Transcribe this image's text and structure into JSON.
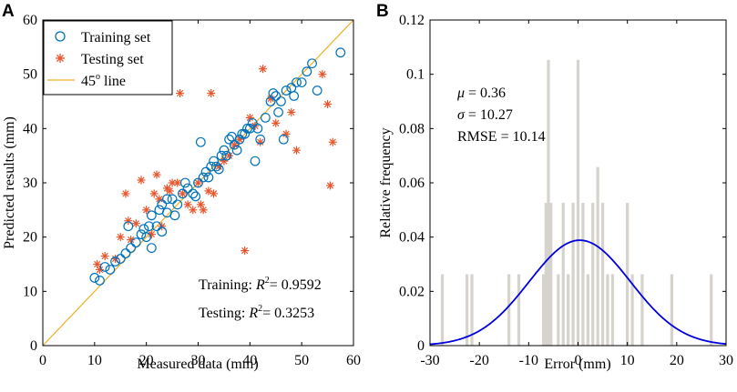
{
  "colors": {
    "train": "#0072BD",
    "test": "#E8552C",
    "line45": "#EDB120",
    "hist": "#D6D2CC",
    "normal": "#0000DD"
  },
  "chart_data": [
    {
      "panel": "A",
      "type": "scatter",
      "xlabel": "Measured data (mm)",
      "ylabel": "Predicted results (mm)",
      "xlim": [
        0,
        60
      ],
      "ylim": [
        0,
        60
      ],
      "xticks": [
        0,
        10,
        20,
        30,
        40,
        50,
        60
      ],
      "yticks": [
        0,
        10,
        20,
        30,
        40,
        50,
        60
      ],
      "xtick_labels": [
        "0",
        "10",
        "20",
        "30",
        "40",
        "50",
        "60"
      ],
      "ytick_labels": [
        "0",
        "10",
        "20",
        "30",
        "40",
        "50",
        "60"
      ],
      "legend": {
        "location": "top-left",
        "entries": [
          "Training set",
          "Testing set",
          "45"
        ],
        "line_suffix": " line",
        "sup": "o"
      },
      "annotations": {
        "training_label": "Training:",
        "training_r2": "= 0.9592",
        "testing_label": "Testing:",
        "testing_r2": "= 0.3253",
        "r": "R",
        "sq": "2"
      },
      "series": [
        {
          "name": "Training set",
          "marker": "circle",
          "points": [
            [
              10,
              12.5
            ],
            [
              11,
              12
            ],
            [
              12,
              14.5
            ],
            [
              13,
              14
            ],
            [
              14,
              15.5
            ],
            [
              15,
              16
            ],
            [
              16,
              17
            ],
            [
              16.5,
              22
            ],
            [
              17,
              18
            ],
            [
              18,
              19
            ],
            [
              19,
              20.5
            ],
            [
              19.5,
              21.5
            ],
            [
              20,
              20
            ],
            [
              20.5,
              22
            ],
            [
              21,
              18
            ],
            [
              21,
              24
            ],
            [
              22,
              22
            ],
            [
              22.5,
              25
            ],
            [
              23,
              21
            ],
            [
              23,
              26
            ],
            [
              24,
              24.5
            ],
            [
              24,
              27
            ],
            [
              25,
              27
            ],
            [
              25.5,
              24
            ],
            [
              26,
              26
            ],
            [
              27,
              28
            ],
            [
              27.5,
              30
            ],
            [
              28,
              29
            ],
            [
              29,
              28
            ],
            [
              29.5,
              27.5
            ],
            [
              30,
              30
            ],
            [
              30.5,
              37.5
            ],
            [
              31,
              31
            ],
            [
              31.5,
              32
            ],
            [
              32,
              31
            ],
            [
              32.5,
              33
            ],
            [
              33,
              34
            ],
            [
              33.5,
              33
            ],
            [
              34,
              32.5
            ],
            [
              34.5,
              35
            ],
            [
              35,
              36
            ],
            [
              35.5,
              35
            ],
            [
              36,
              38
            ],
            [
              36.5,
              38.5
            ],
            [
              37,
              37
            ],
            [
              37.5,
              36
            ],
            [
              38,
              38
            ],
            [
              38.5,
              39
            ],
            [
              39,
              39
            ],
            [
              39.5,
              40
            ],
            [
              40,
              40
            ],
            [
              40.5,
              41
            ],
            [
              41,
              34
            ],
            [
              41.5,
              40
            ],
            [
              42,
              38
            ],
            [
              43,
              42
            ],
            [
              44,
              45
            ],
            [
              44.5,
              46.5
            ],
            [
              45,
              46
            ],
            [
              45.5,
              43
            ],
            [
              46,
              45
            ],
            [
              46.5,
              38
            ],
            [
              47,
              47
            ],
            [
              48,
              47.5
            ],
            [
              48.5,
              46
            ],
            [
              49,
              48.5
            ],
            [
              50,
              48.5
            ],
            [
              51,
              50.5
            ],
            [
              52,
              52
            ],
            [
              53,
              47
            ],
            [
              57.5,
              54
            ]
          ]
        },
        {
          "name": "Testing set",
          "marker": "asterisk",
          "points": [
            [
              10.5,
              15
            ],
            [
              11,
              14
            ],
            [
              12,
              16.5
            ],
            [
              14,
              16
            ],
            [
              15,
              20
            ],
            [
              16,
              28
            ],
            [
              16.5,
              23
            ],
            [
              17,
              19.5
            ],
            [
              18,
              22.5
            ],
            [
              19,
              30.5
            ],
            [
              20,
              25
            ],
            [
              21,
              20.5
            ],
            [
              21.5,
              28
            ],
            [
              22,
              31.5
            ],
            [
              22.5,
              27
            ],
            [
              23,
              22
            ],
            [
              24,
              29
            ],
            [
              24.5,
              28.5
            ],
            [
              25,
              30
            ],
            [
              26,
              30
            ],
            [
              26.5,
              46.5
            ],
            [
              27,
              28
            ],
            [
              28,
              26
            ],
            [
              29,
              25
            ],
            [
              30,
              30
            ],
            [
              30.5,
              26
            ],
            [
              31,
              25
            ],
            [
              32,
              28.5
            ],
            [
              32.5,
              46.5
            ],
            [
              33,
              28
            ],
            [
              34,
              33
            ],
            [
              35,
              34
            ],
            [
              36,
              35
            ],
            [
              37,
              37
            ],
            [
              38,
              38
            ],
            [
              39,
              17.5
            ],
            [
              40,
              42
            ],
            [
              41,
              40.5
            ],
            [
              42,
              37.5
            ],
            [
              42.5,
              51
            ],
            [
              44,
              45.5
            ],
            [
              45,
              41
            ],
            [
              47,
              39
            ],
            [
              48,
              43
            ],
            [
              49,
              36
            ],
            [
              54,
              50
            ],
            [
              55,
              44.5
            ],
            [
              55.5,
              29.5
            ],
            [
              56,
              37.5
            ]
          ]
        }
      ]
    },
    {
      "panel": "B",
      "type": "bar",
      "subtype": "histogram with fitted normal curve",
      "xlabel": "Error (mm)",
      "ylabel": "Relative frequency",
      "xlim": [
        -30,
        30
      ],
      "ylim": [
        0,
        0.12
      ],
      "xticks": [
        -30,
        -20,
        -10,
        0,
        10,
        20,
        30
      ],
      "yticks": [
        0,
        0.02,
        0.04,
        0.06,
        0.08,
        0.1,
        0.12
      ],
      "xtick_labels": [
        "-30",
        "-20",
        "-10",
        "0",
        "10",
        "20",
        "30"
      ],
      "ytick_labels": [
        "0",
        "0.02",
        "0.04",
        "0.06",
        "0.08",
        "0.1",
        "0.12"
      ],
      "stats": {
        "mu": "= 0.36",
        "sigma": "= 10.27",
        "rmse": "RMSE = 10.14",
        "mu_symbol": "μ",
        "sigma_symbol": "σ"
      },
      "bins": [
        [
          -27.5,
          0.0263
        ],
        [
          -22.5,
          0.0263
        ],
        [
          -21.5,
          0.0263
        ],
        [
          -14,
          0.0263
        ],
        [
          -12,
          0.0263
        ],
        [
          -7,
          0.0263
        ],
        [
          -6.5,
          0.0526
        ],
        [
          -6,
          0.1053
        ],
        [
          -5.5,
          0.0526
        ],
        [
          -4,
          0.0263
        ],
        [
          -3,
          0.0526
        ],
        [
          -2,
          0.0263
        ],
        [
          -1,
          0.0526
        ],
        [
          0,
          0.1053
        ],
        [
          1,
          0.0526
        ],
        [
          2,
          0.0263
        ],
        [
          3,
          0.0526
        ],
        [
          4,
          0.0658
        ],
        [
          5,
          0.0526
        ],
        [
          6,
          0.0263
        ],
        [
          7,
          0.0263
        ],
        [
          10,
          0.0526
        ],
        [
          11,
          0.0263
        ],
        [
          13,
          0.0263
        ],
        [
          19,
          0.0263
        ],
        [
          27,
          0.0263
        ]
      ],
      "normal_fit": {
        "mu": 0.36,
        "sigma": 10.27
      }
    }
  ],
  "panels": {
    "a": "A",
    "b": "B"
  }
}
